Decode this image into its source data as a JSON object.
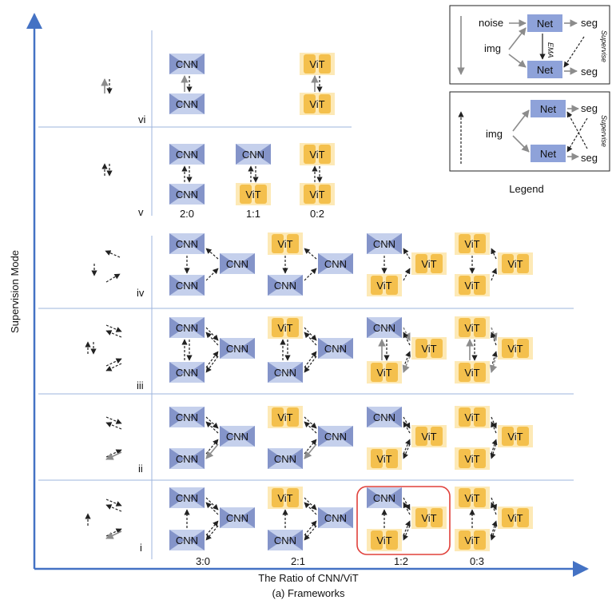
{
  "axis": {
    "x_label": "The Ratio of CNN/ViT",
    "y_label": "Supervision Mode",
    "caption": "(a) Frameworks"
  },
  "blocks": {
    "cnn": "CNN",
    "vit": "ViT",
    "net": "Net"
  },
  "rows": {
    "vi": {
      "label": "vi",
      "ratios": []
    },
    "v": {
      "label": "v",
      "ratios": [
        "2:0",
        "1:1",
        "0:2"
      ]
    },
    "iv": {
      "label": "iv"
    },
    "iii": {
      "label": "iii"
    },
    "ii": {
      "label": "ii"
    },
    "i": {
      "label": "i"
    }
  },
  "bottom_ratios": [
    "3:0",
    "2:1",
    "1:2",
    "0:3"
  ],
  "legend": {
    "title": "Legend",
    "noise": "noise",
    "img": "img",
    "seg": "seg",
    "ema": "EMA",
    "supervise": "Supervise"
  },
  "colors": {
    "axis": "#4472c4",
    "separator": "#9db4dd",
    "cnn_fill": "#c5d0ec",
    "cnn_hourglass": "#8494c9",
    "vit_fill": "#fde9b6",
    "vit_block": "#f4c04d",
    "net_fill": "#8ea2d9",
    "highlight": "#e0403a",
    "arrow_dark": "#222222",
    "arrow_gray": "#8c8c8c"
  }
}
